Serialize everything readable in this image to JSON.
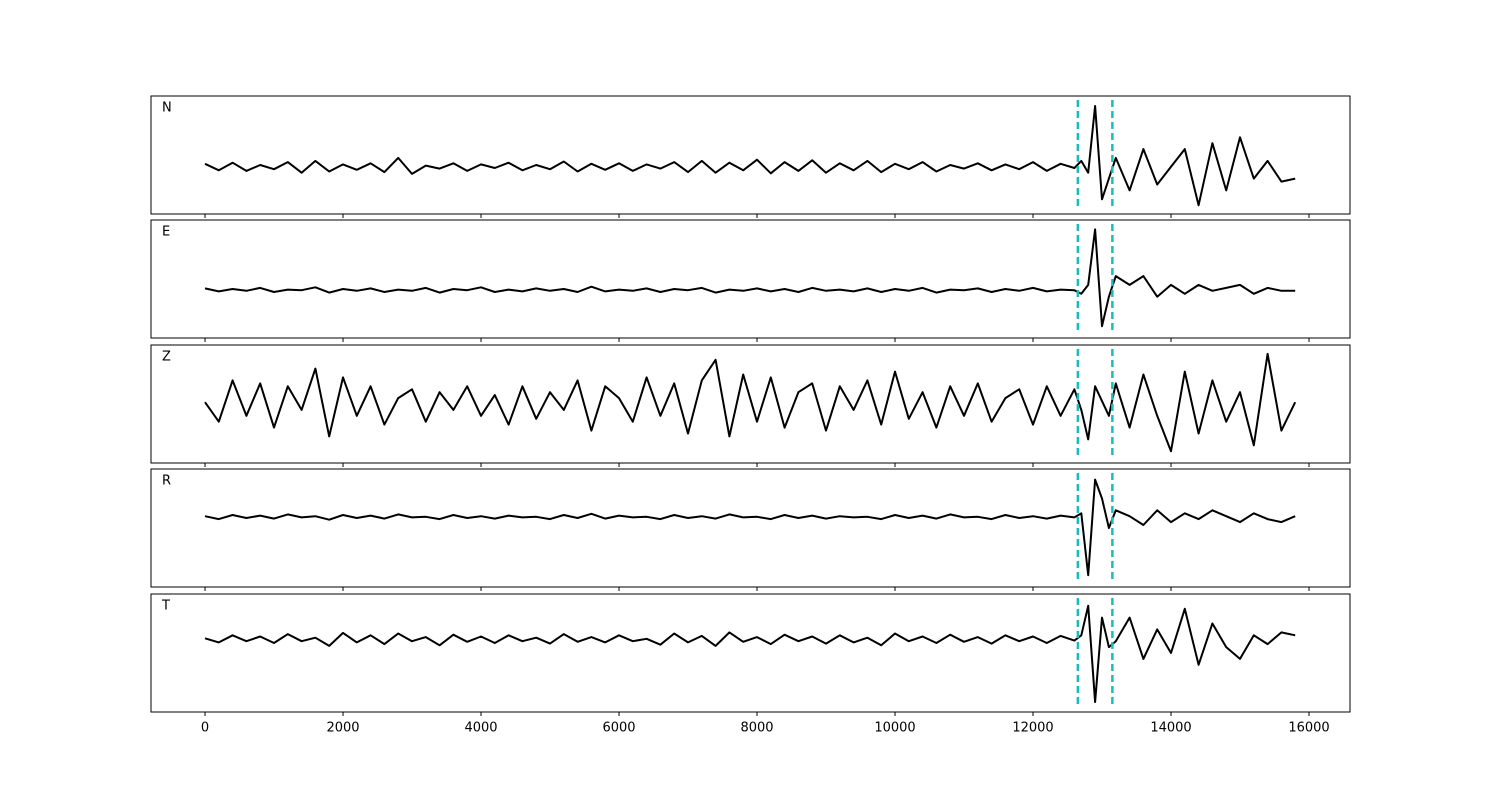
{
  "chart_data": {
    "type": "line",
    "x": [
      0,
      200,
      400,
      600,
      800,
      1000,
      1200,
      1400,
      1600,
      1800,
      2000,
      2200,
      2400,
      2600,
      2800,
      3000,
      3200,
      3400,
      3600,
      3800,
      4000,
      4200,
      4400,
      4600,
      4800,
      5000,
      5200,
      5400,
      5600,
      5800,
      6000,
      6200,
      6400,
      6600,
      6800,
      7000,
      7200,
      7400,
      7600,
      7800,
      8000,
      8200,
      8400,
      8600,
      8800,
      9000,
      9200,
      9400,
      9600,
      9800,
      10000,
      10200,
      10400,
      10600,
      10800,
      11000,
      11200,
      11400,
      11600,
      11800,
      12000,
      12200,
      12400,
      12600,
      12700,
      12800,
      12900,
      13000,
      13100,
      13200,
      13400,
      13600,
      13800,
      14000,
      14200,
      14400,
      14600,
      14800,
      15000,
      15200,
      15400,
      15600,
      15800
    ],
    "xlim": [
      -783,
      16594
    ],
    "xticks": [
      0,
      2000,
      4000,
      6000,
      8000,
      10000,
      12000,
      14000,
      16000
    ],
    "ylim": [
      -1,
      1
    ],
    "vlines": [
      12650,
      13150
    ],
    "vline_color": "#17bebb",
    "series": [
      {
        "name": "N",
        "color": "#000000",
        "values": [
          -0.15,
          -0.26,
          -0.13,
          -0.27,
          -0.17,
          -0.24,
          -0.12,
          -0.3,
          -0.1,
          -0.28,
          -0.16,
          -0.25,
          -0.14,
          -0.29,
          -0.05,
          -0.32,
          -0.18,
          -0.23,
          -0.14,
          -0.27,
          -0.16,
          -0.22,
          -0.13,
          -0.26,
          -0.17,
          -0.24,
          -0.11,
          -0.28,
          -0.15,
          -0.25,
          -0.14,
          -0.27,
          -0.16,
          -0.23,
          -0.12,
          -0.29,
          -0.1,
          -0.3,
          -0.13,
          -0.26,
          -0.08,
          -0.31,
          -0.12,
          -0.27,
          -0.09,
          -0.3,
          -0.14,
          -0.26,
          -0.1,
          -0.29,
          -0.15,
          -0.24,
          -0.12,
          -0.28,
          -0.17,
          -0.23,
          -0.14,
          -0.26,
          -0.16,
          -0.24,
          -0.12,
          -0.27,
          -0.15,
          -0.22,
          -0.1,
          -0.3,
          0.83,
          -0.75,
          -0.4,
          -0.05,
          -0.6,
          0.1,
          -0.5,
          -0.2,
          0.1,
          -0.85,
          0.2,
          -0.6,
          0.3,
          -0.4,
          -0.1,
          -0.45,
          -0.4
        ]
      },
      {
        "name": "E",
        "color": "#000000",
        "values": [
          -0.16,
          -0.21,
          -0.17,
          -0.2,
          -0.15,
          -0.22,
          -0.18,
          -0.19,
          -0.14,
          -0.23,
          -0.17,
          -0.2,
          -0.16,
          -0.22,
          -0.18,
          -0.2,
          -0.15,
          -0.23,
          -0.17,
          -0.19,
          -0.14,
          -0.22,
          -0.18,
          -0.21,
          -0.16,
          -0.2,
          -0.17,
          -0.22,
          -0.13,
          -0.21,
          -0.18,
          -0.2,
          -0.16,
          -0.22,
          -0.17,
          -0.19,
          -0.15,
          -0.23,
          -0.18,
          -0.2,
          -0.16,
          -0.21,
          -0.17,
          -0.22,
          -0.15,
          -0.2,
          -0.18,
          -0.21,
          -0.16,
          -0.22,
          -0.17,
          -0.2,
          -0.15,
          -0.23,
          -0.18,
          -0.19,
          -0.16,
          -0.22,
          -0.17,
          -0.2,
          -0.15,
          -0.21,
          -0.18,
          -0.19,
          -0.25,
          -0.1,
          0.84,
          -0.8,
          -0.3,
          0.05,
          -0.1,
          0.05,
          -0.3,
          -0.1,
          -0.25,
          -0.1,
          -0.2,
          -0.15,
          -0.1,
          -0.25,
          -0.15,
          -0.2,
          -0.2
        ]
      },
      {
        "name": "Z",
        "color": "#000000",
        "values": [
          0.03,
          -0.3,
          0.4,
          -0.2,
          0.35,
          -0.4,
          0.3,
          -0.1,
          0.6,
          -0.55,
          0.45,
          -0.2,
          0.3,
          -0.35,
          0.1,
          0.25,
          -0.3,
          0.2,
          -0.1,
          0.3,
          -0.2,
          0.15,
          -0.35,
          0.3,
          -0.25,
          0.2,
          -0.1,
          0.4,
          -0.45,
          0.3,
          0.1,
          -0.3,
          0.45,
          -0.2,
          0.35,
          -0.5,
          0.4,
          0.75,
          -0.55,
          0.5,
          -0.3,
          0.45,
          -0.4,
          0.2,
          0.35,
          -0.45,
          0.3,
          -0.1,
          0.4,
          -0.35,
          0.55,
          -0.25,
          0.2,
          -0.4,
          0.3,
          -0.2,
          0.35,
          -0.3,
          0.1,
          0.25,
          -0.35,
          0.3,
          -0.2,
          0.25,
          -0.1,
          -0.6,
          0.3,
          0.05,
          -0.2,
          0.35,
          -0.4,
          0.5,
          -0.2,
          -0.8,
          0.55,
          -0.5,
          0.4,
          -0.3,
          0.2,
          -0.7,
          0.85,
          -0.45,
          0.03
        ]
      },
      {
        "name": "R",
        "color": "#000000",
        "values": [
          0.2,
          0.15,
          0.22,
          0.17,
          0.21,
          0.16,
          0.23,
          0.18,
          0.2,
          0.14,
          0.22,
          0.17,
          0.21,
          0.16,
          0.23,
          0.18,
          0.19,
          0.15,
          0.22,
          0.17,
          0.2,
          0.16,
          0.21,
          0.18,
          0.19,
          0.15,
          0.22,
          0.17,
          0.24,
          0.16,
          0.21,
          0.18,
          0.19,
          0.15,
          0.22,
          0.17,
          0.2,
          0.16,
          0.23,
          0.18,
          0.19,
          0.15,
          0.22,
          0.17,
          0.21,
          0.16,
          0.2,
          0.18,
          0.19,
          0.15,
          0.22,
          0.17,
          0.21,
          0.16,
          0.23,
          0.18,
          0.19,
          0.15,
          0.22,
          0.17,
          0.2,
          0.16,
          0.21,
          0.18,
          0.25,
          -0.8,
          0.82,
          0.5,
          0.0,
          0.3,
          0.2,
          0.05,
          0.3,
          0.1,
          0.25,
          0.15,
          0.3,
          0.2,
          0.1,
          0.25,
          0.15,
          0.1,
          0.2
        ]
      },
      {
        "name": "T",
        "color": "#000000",
        "values": [
          0.25,
          0.18,
          0.3,
          0.2,
          0.28,
          0.17,
          0.32,
          0.2,
          0.26,
          0.12,
          0.34,
          0.18,
          0.3,
          0.15,
          0.33,
          0.2,
          0.27,
          0.13,
          0.31,
          0.19,
          0.28,
          0.17,
          0.3,
          0.2,
          0.26,
          0.16,
          0.32,
          0.19,
          0.27,
          0.18,
          0.3,
          0.2,
          0.24,
          0.14,
          0.33,
          0.18,
          0.29,
          0.12,
          0.35,
          0.19,
          0.27,
          0.15,
          0.31,
          0.2,
          0.28,
          0.16,
          0.3,
          0.18,
          0.26,
          0.13,
          0.33,
          0.2,
          0.28,
          0.17,
          0.31,
          0.19,
          0.27,
          0.16,
          0.3,
          0.2,
          0.28,
          0.17,
          0.29,
          0.21,
          0.3,
          0.8,
          -0.83,
          0.6,
          0.1,
          0.2,
          0.6,
          -0.1,
          0.4,
          0.0,
          0.75,
          -0.2,
          0.5,
          0.1,
          -0.1,
          0.3,
          0.15,
          0.35,
          0.3
        ]
      }
    ]
  }
}
